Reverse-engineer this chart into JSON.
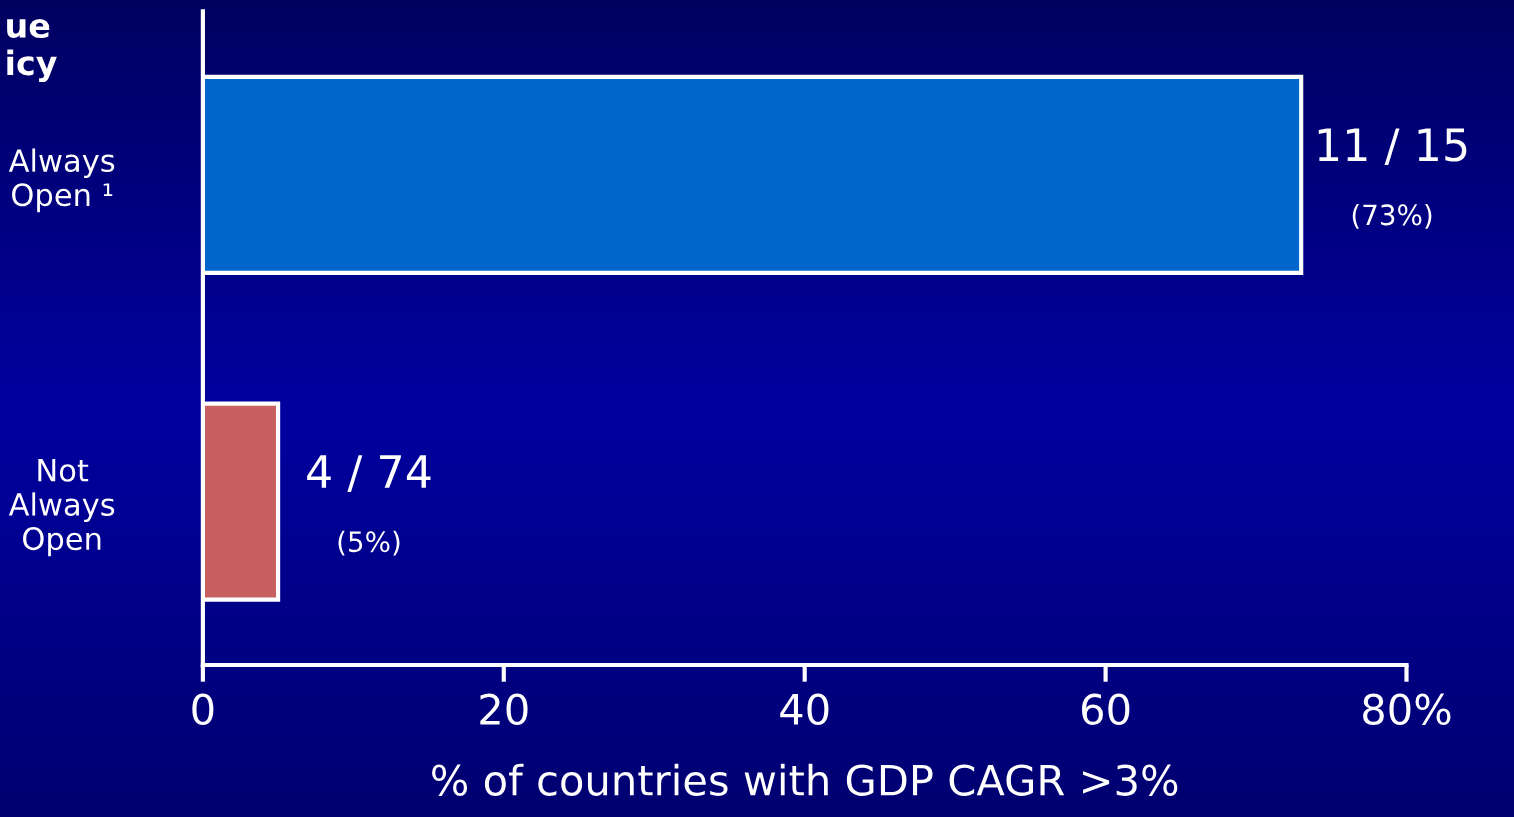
{
  "chart_data": {
    "type": "bar",
    "orientation": "horizontal",
    "categories": [
      "Always\nOpen ¹",
      "Not\nAlways\nOpen"
    ],
    "values": [
      73,
      5
    ],
    "colors": [
      "#0066cc",
      "#c86060"
    ],
    "value_labels": [
      "11 / 15\n(73%)",
      "4 / 74\n(5%)"
    ],
    "xlabel": "% of countries with GDP CAGR >3%",
    "xlim": [
      0,
      80
    ],
    "xticks": [
      0,
      20,
      40,
      60,
      {
        "value": 80,
        "label": "80%"
      }
    ],
    "annotations": [
      "ue\nicy"
    ],
    "grid": false,
    "legend": false
  }
}
